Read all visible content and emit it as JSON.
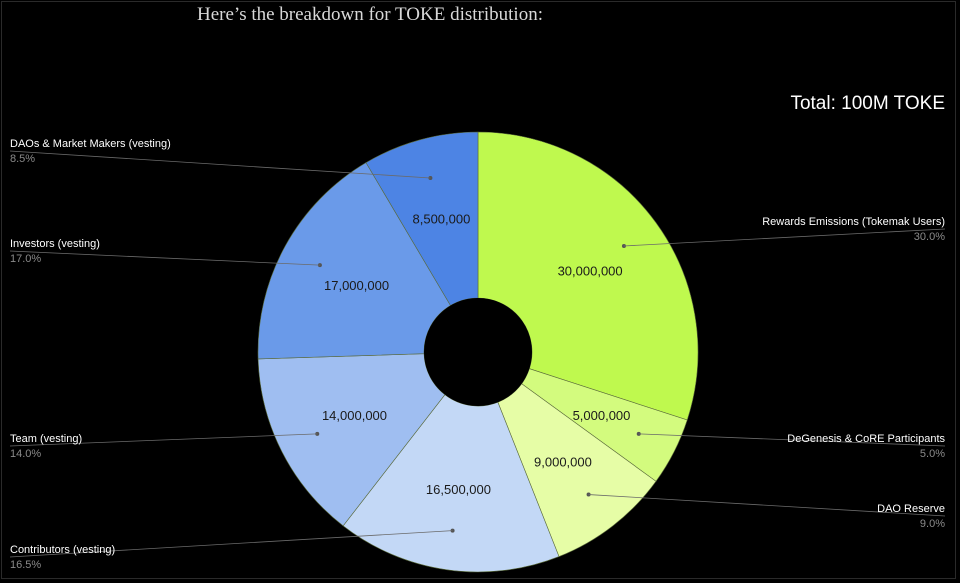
{
  "caption": "Here’s the breakdown for TOKE distribution:",
  "chart_data": {
    "type": "pie",
    "title": "Total: 100M TOKE",
    "donut": true,
    "slices": [
      {
        "name": "Rewards Emissions (Tokemak Users)",
        "value": 30000000,
        "value_label": "30,000,000",
        "percent_label": "30.0%",
        "color": "#bff94e"
      },
      {
        "name": "DeGenesis & CoRE Participants",
        "value": 5000000,
        "value_label": "5,000,000",
        "percent_label": "5.0%",
        "color": "#d3fb7e"
      },
      {
        "name": "DAO Reserve",
        "value": 9000000,
        "value_label": "9,000,000",
        "percent_label": "9.0%",
        "color": "#e6fda6"
      },
      {
        "name": "Contributors (vesting)",
        "value": 16500000,
        "value_label": "16,500,000",
        "percent_label": "16.5%",
        "color": "#c3d8f6"
      },
      {
        "name": "Team (vesting)",
        "value": 14000000,
        "value_label": "14,000,000",
        "percent_label": "14.0%",
        "color": "#9fbef1"
      },
      {
        "name": "Investors (vesting)",
        "value": 17000000,
        "value_label": "17,000,000",
        "percent_label": "17.0%",
        "color": "#6a9ae9"
      },
      {
        "name": "DAOs & Market Makers (vesting)",
        "value": 8500000,
        "value_label": "8,500,000",
        "percent_label": "8.5%",
        "color": "#4d84e4"
      }
    ],
    "legend": "callouts-left-and-right"
  }
}
